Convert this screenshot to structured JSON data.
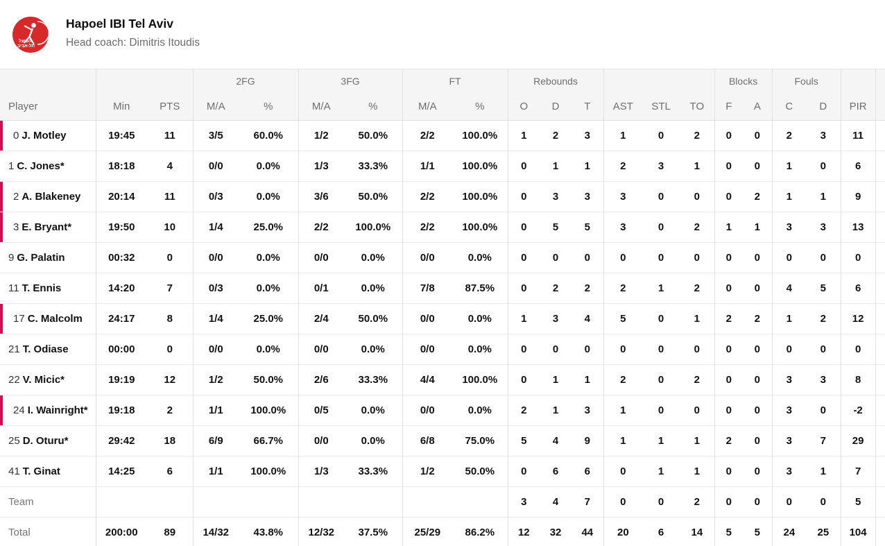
{
  "theme": {
    "on_court_color": "#d60b52",
    "logo_color": "#d7282a",
    "header_bg": "#f5f5f5"
  },
  "team": {
    "name": "Hapoel IBI Tel Aviv",
    "coach": "Head coach: Dimitris Itoudis",
    "logo_text_line1": "הפועל",
    "logo_text_line2": "תל-אביב"
  },
  "table": {
    "group_headers": {
      "fg2": "2FG",
      "fg3": "3FG",
      "ft": "FT",
      "rebounds": "Rebounds",
      "blocks": "Blocks",
      "fouls": "Fouls"
    },
    "column_headers": {
      "player": "Player",
      "min": "Min",
      "pts": "PTS",
      "ma": "M/A",
      "pct": "%",
      "reb_o": "O",
      "reb_d": "D",
      "reb_t": "T",
      "ast": "AST",
      "stl": "STL",
      "to": "TO",
      "blk_f": "F",
      "blk_a": "A",
      "foul_c": "C",
      "foul_d": "D",
      "pir": "PIR"
    },
    "rows": [
      {
        "number": "0",
        "name": "J. Motley",
        "on_court": true,
        "min": "19:45",
        "pts": "11",
        "two_ma": "3/5",
        "two_pct": "60.0%",
        "three_ma": "1/2",
        "three_pct": "50.0%",
        "ft_ma": "2/2",
        "ft_pct": "100.0%",
        "reb_o": "1",
        "reb_d": "2",
        "reb_t": "3",
        "ast": "1",
        "stl": "0",
        "to": "2",
        "blk_f": "0",
        "blk_a": "0",
        "foul_c": "2",
        "foul_d": "3",
        "pir": "11"
      },
      {
        "number": "1",
        "name": "C. Jones*",
        "on_court": false,
        "min": "18:18",
        "pts": "4",
        "two_ma": "0/0",
        "two_pct": "0.0%",
        "three_ma": "1/3",
        "three_pct": "33.3%",
        "ft_ma": "1/1",
        "ft_pct": "100.0%",
        "reb_o": "0",
        "reb_d": "1",
        "reb_t": "1",
        "ast": "2",
        "stl": "3",
        "to": "1",
        "blk_f": "0",
        "blk_a": "0",
        "foul_c": "1",
        "foul_d": "0",
        "pir": "6"
      },
      {
        "number": "2",
        "name": "A. Blakeney",
        "on_court": true,
        "min": "20:14",
        "pts": "11",
        "two_ma": "0/3",
        "two_pct": "0.0%",
        "three_ma": "3/6",
        "three_pct": "50.0%",
        "ft_ma": "2/2",
        "ft_pct": "100.0%",
        "reb_o": "0",
        "reb_d": "3",
        "reb_t": "3",
        "ast": "3",
        "stl": "0",
        "to": "0",
        "blk_f": "0",
        "blk_a": "2",
        "foul_c": "1",
        "foul_d": "1",
        "pir": "9"
      },
      {
        "number": "3",
        "name": "E. Bryant*",
        "on_court": true,
        "min": "19:50",
        "pts": "10",
        "two_ma": "1/4",
        "two_pct": "25.0%",
        "three_ma": "2/2",
        "three_pct": "100.0%",
        "ft_ma": "2/2",
        "ft_pct": "100.0%",
        "reb_o": "0",
        "reb_d": "5",
        "reb_t": "5",
        "ast": "3",
        "stl": "0",
        "to": "2",
        "blk_f": "1",
        "blk_a": "1",
        "foul_c": "3",
        "foul_d": "3",
        "pir": "13"
      },
      {
        "number": "9",
        "name": "G. Palatin",
        "on_court": false,
        "min": "00:32",
        "pts": "0",
        "two_ma": "0/0",
        "two_pct": "0.0%",
        "three_ma": "0/0",
        "three_pct": "0.0%",
        "ft_ma": "0/0",
        "ft_pct": "0.0%",
        "reb_o": "0",
        "reb_d": "0",
        "reb_t": "0",
        "ast": "0",
        "stl": "0",
        "to": "0",
        "blk_f": "0",
        "blk_a": "0",
        "foul_c": "0",
        "foul_d": "0",
        "pir": "0"
      },
      {
        "number": "11",
        "name": "T. Ennis",
        "on_court": false,
        "min": "14:20",
        "pts": "7",
        "two_ma": "0/3",
        "two_pct": "0.0%",
        "three_ma": "0/1",
        "three_pct": "0.0%",
        "ft_ma": "7/8",
        "ft_pct": "87.5%",
        "reb_o": "0",
        "reb_d": "2",
        "reb_t": "2",
        "ast": "2",
        "stl": "1",
        "to": "2",
        "blk_f": "0",
        "blk_a": "0",
        "foul_c": "4",
        "foul_d": "5",
        "pir": "6"
      },
      {
        "number": "17",
        "name": "C. Malcolm",
        "on_court": true,
        "min": "24:17",
        "pts": "8",
        "two_ma": "1/4",
        "two_pct": "25.0%",
        "three_ma": "2/4",
        "three_pct": "50.0%",
        "ft_ma": "0/0",
        "ft_pct": "0.0%",
        "reb_o": "1",
        "reb_d": "3",
        "reb_t": "4",
        "ast": "5",
        "stl": "0",
        "to": "1",
        "blk_f": "2",
        "blk_a": "2",
        "foul_c": "1",
        "foul_d": "2",
        "pir": "12"
      },
      {
        "number": "21",
        "name": "T. Odiase",
        "on_court": false,
        "min": "00:00",
        "pts": "0",
        "two_ma": "0/0",
        "two_pct": "0.0%",
        "three_ma": "0/0",
        "three_pct": "0.0%",
        "ft_ma": "0/0",
        "ft_pct": "0.0%",
        "reb_o": "0",
        "reb_d": "0",
        "reb_t": "0",
        "ast": "0",
        "stl": "0",
        "to": "0",
        "blk_f": "0",
        "blk_a": "0",
        "foul_c": "0",
        "foul_d": "0",
        "pir": "0"
      },
      {
        "number": "22",
        "name": "V. Micic*",
        "on_court": false,
        "min": "19:19",
        "pts": "12",
        "two_ma": "1/2",
        "two_pct": "50.0%",
        "three_ma": "2/6",
        "three_pct": "33.3%",
        "ft_ma": "4/4",
        "ft_pct": "100.0%",
        "reb_o": "0",
        "reb_d": "1",
        "reb_t": "1",
        "ast": "2",
        "stl": "0",
        "to": "2",
        "blk_f": "0",
        "blk_a": "0",
        "foul_c": "3",
        "foul_d": "3",
        "pir": "8"
      },
      {
        "number": "24",
        "name": "I. Wainright*",
        "on_court": true,
        "min": "19:18",
        "pts": "2",
        "two_ma": "1/1",
        "two_pct": "100.0%",
        "three_ma": "0/5",
        "three_pct": "0.0%",
        "ft_ma": "0/0",
        "ft_pct": "0.0%",
        "reb_o": "2",
        "reb_d": "1",
        "reb_t": "3",
        "ast": "1",
        "stl": "0",
        "to": "0",
        "blk_f": "0",
        "blk_a": "0",
        "foul_c": "3",
        "foul_d": "0",
        "pir": "-2"
      },
      {
        "number": "25",
        "name": "D. Oturu*",
        "on_court": false,
        "min": "29:42",
        "pts": "18",
        "two_ma": "6/9",
        "two_pct": "66.7%",
        "three_ma": "0/0",
        "three_pct": "0.0%",
        "ft_ma": "6/8",
        "ft_pct": "75.0%",
        "reb_o": "5",
        "reb_d": "4",
        "reb_t": "9",
        "ast": "1",
        "stl": "1",
        "to": "1",
        "blk_f": "2",
        "blk_a": "0",
        "foul_c": "3",
        "foul_d": "7",
        "pir": "29"
      },
      {
        "number": "41",
        "name": "T. Ginat",
        "on_court": false,
        "min": "14:25",
        "pts": "6",
        "two_ma": "1/1",
        "two_pct": "100.0%",
        "three_ma": "1/3",
        "three_pct": "33.3%",
        "ft_ma": "1/2",
        "ft_pct": "50.0%",
        "reb_o": "0",
        "reb_d": "6",
        "reb_t": "6",
        "ast": "0",
        "stl": "1",
        "to": "1",
        "blk_f": "0",
        "blk_a": "0",
        "foul_c": "3",
        "foul_d": "1",
        "pir": "7"
      }
    ],
    "team_row": {
      "label": "Team",
      "min": "",
      "pts": "",
      "two_ma": "",
      "two_pct": "",
      "three_ma": "",
      "three_pct": "",
      "ft_ma": "",
      "ft_pct": "",
      "reb_o": "3",
      "reb_d": "4",
      "reb_t": "7",
      "ast": "0",
      "stl": "0",
      "to": "2",
      "blk_f": "0",
      "blk_a": "0",
      "foul_c": "0",
      "foul_d": "0",
      "pir": "5"
    },
    "total_row": {
      "label": "Total",
      "min": "200:00",
      "pts": "89",
      "two_ma": "14/32",
      "two_pct": "43.8%",
      "three_ma": "12/32",
      "three_pct": "37.5%",
      "ft_ma": "25/29",
      "ft_pct": "86.2%",
      "reb_o": "12",
      "reb_d": "32",
      "reb_t": "44",
      "ast": "20",
      "stl": "6",
      "to": "14",
      "blk_f": "5",
      "blk_a": "5",
      "foul_c": "24",
      "foul_d": "25",
      "pir": "104"
    }
  }
}
